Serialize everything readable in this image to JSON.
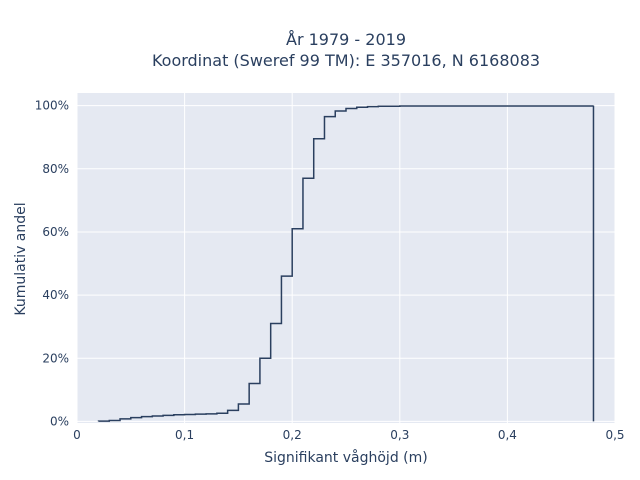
{
  "chart_data": {
    "type": "line",
    "title_lines": [
      "År 1979 - 2019",
      "Koordinat (Sweref 99 TM): E 357016, N 6168083"
    ],
    "xlabel": "Signifikant våghöjd (m)",
    "ylabel": "Kumulativ andel",
    "xlim": [
      0,
      0.5
    ],
    "ylim": [
      0,
      100
    ],
    "x_ticks": [
      0,
      0.1,
      0.2,
      0.3,
      0.4,
      0.5
    ],
    "x_tick_labels": [
      "0",
      "0,1",
      "0,2",
      "0,3",
      "0,4",
      "0,5"
    ],
    "y_ticks": [
      0,
      20,
      40,
      60,
      80,
      100
    ],
    "y_tick_labels": [
      "0%",
      "20%",
      "40%",
      "60%",
      "80%",
      "100%"
    ],
    "grid": true,
    "line_color": "#2a3f5f",
    "plot_bg": "#e5e9f2",
    "grid_color": "#ffffff",
    "series": [
      {
        "step": "post",
        "x": [
          0.02,
          0.03,
          0.04,
          0.05,
          0.06,
          0.07,
          0.08,
          0.09,
          0.1,
          0.11,
          0.12,
          0.13,
          0.14,
          0.15,
          0.16,
          0.17,
          0.18,
          0.19,
          0.2,
          0.21,
          0.22,
          0.23,
          0.24,
          0.25,
          0.26,
          0.27,
          0.28,
          0.3,
          0.48
        ],
        "y": [
          0.1,
          0.3,
          0.8,
          1.2,
          1.5,
          1.7,
          1.9,
          2.1,
          2.2,
          2.3,
          2.4,
          2.6,
          3.5,
          5.5,
          12,
          20,
          31,
          46,
          61,
          77,
          89.5,
          96.5,
          98.3,
          99.1,
          99.5,
          99.7,
          99.8,
          99.9,
          100
        ]
      }
    ]
  }
}
